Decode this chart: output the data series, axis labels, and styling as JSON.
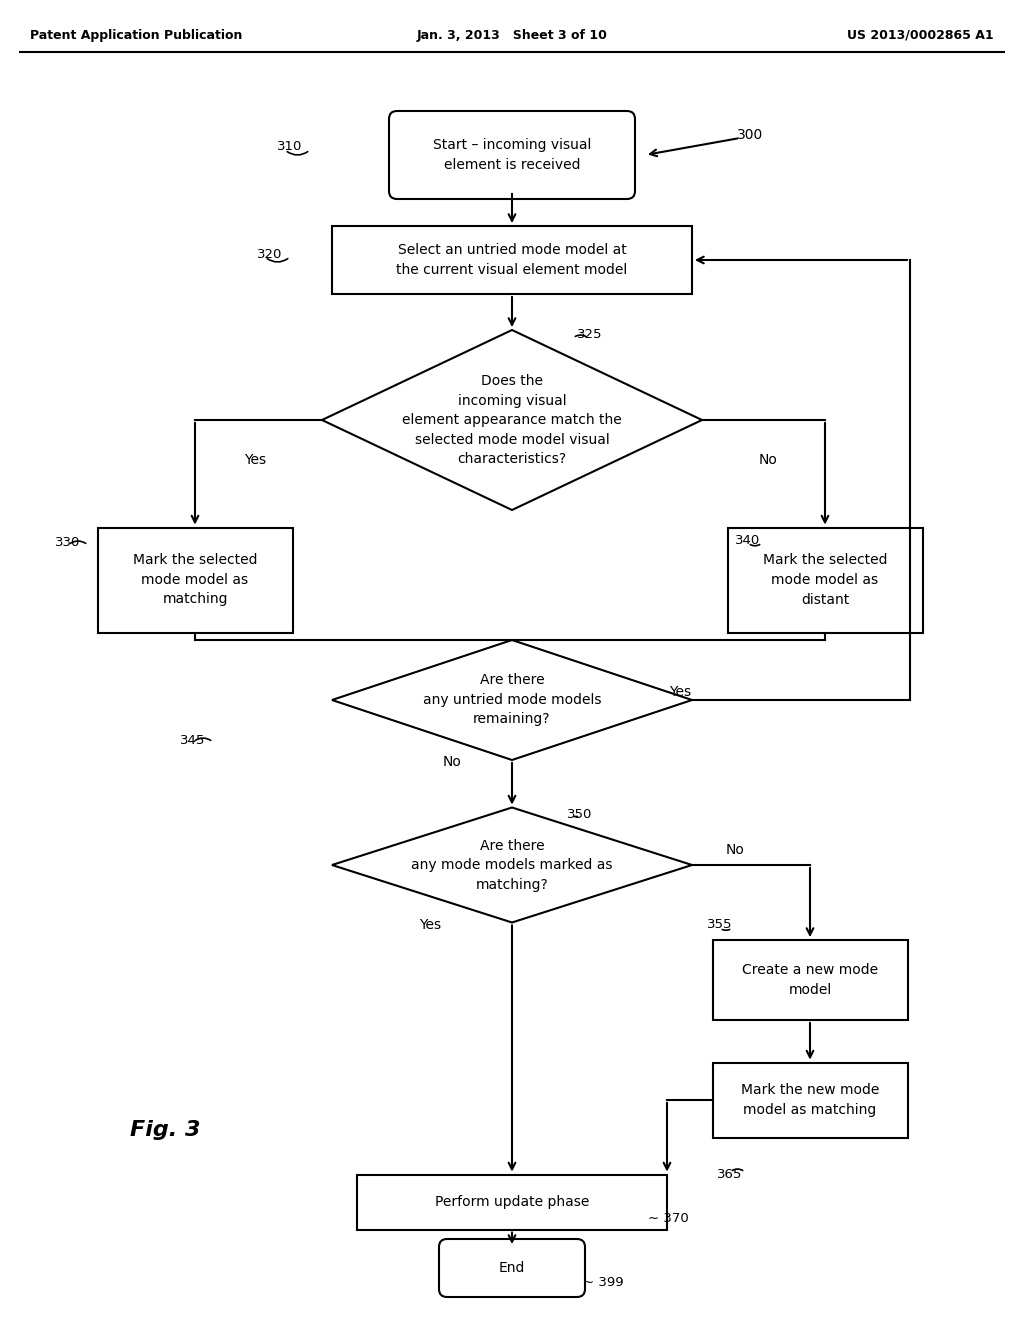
{
  "bg_color": "#ffffff",
  "line_color": "#000000",
  "text_color": "#000000",
  "header_left": "Patent Application Publication",
  "header_center": "Jan. 3, 2013   Sheet 3 of 10",
  "header_right": "US 2013/0002865 A1",
  "fig_label": "Fig. 3",
  "diagram_label": "300",
  "start_text": "Start – incoming visual\nelement is received",
  "start_label": "310",
  "select_text": "Select an untried mode model at\nthe current visual element model",
  "select_label": "320",
  "d1_text": "Does the\nincoming visual\nelement appearance match the\nselected mode model visual\ncharacteristics?",
  "d1_label": "325",
  "match_text": "Mark the selected\nmode model as\nmatching",
  "match_label": "330",
  "distant_text": "Mark the selected\nmode model as\ndistant",
  "distant_label": "340",
  "d2_text": "Are there\nany untried mode models\nremaining?",
  "d2_label": "345",
  "d3_text": "Are there\nany mode models marked as\nmatching?",
  "d3_label": "350",
  "newmode_text": "Create a new mode\nmodel",
  "newmode_label": "355",
  "marknew_text": "Mark the new mode\nmodel as matching",
  "marknew_label": "365",
  "update_text": "Perform update phase",
  "update_label": "370",
  "end_text": "End",
  "end_label": "399",
  "yes": "Yes",
  "no": "No"
}
